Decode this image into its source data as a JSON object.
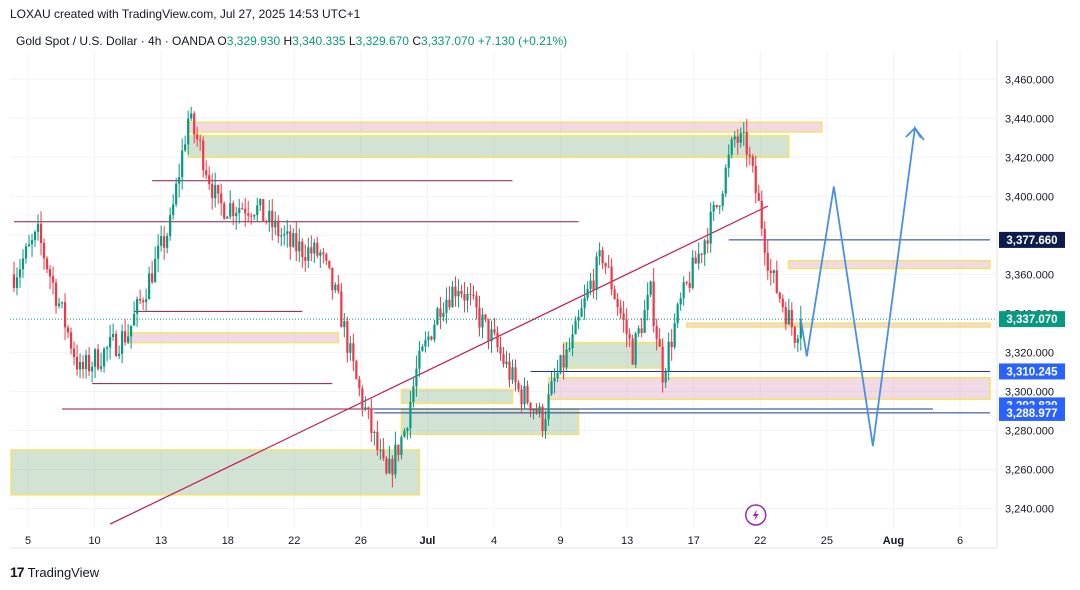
{
  "header": {
    "created_text": "LOXAU created with TradingView.com, Jul 27, 2025 14:53 UTC+1"
  },
  "legend": {
    "symbol": "Gold Spot / U.S. Dollar · 4h · OANDA",
    "o_label": "O",
    "o_value": "3,329.930",
    "h_label": "H",
    "h_value": "3,340.335",
    "l_label": "L",
    "l_value": "3,329.670",
    "c_label": "C",
    "c_value": "3,337.070",
    "change": "+7.130 (+0.21%)"
  },
  "footer": {
    "brand": "TradingView",
    "logo": "tv-logo-icon"
  },
  "colors": {
    "up": "#089981",
    "down": "#f23645",
    "accent": "#2962ff",
    "navy": "#1e3a8a"
  },
  "chart_data": {
    "type": "candlestick",
    "timeframe": "4h",
    "ylim": [
      3230,
      3475
    ],
    "y_ticks": [
      3240,
      3260,
      3280,
      3300,
      3320,
      3340,
      3360,
      3380,
      3400,
      3420,
      3440,
      3460
    ],
    "y_tick_labels": [
      "3,240.000",
      "3,260.000",
      "3,280.000",
      "3,300.000",
      "3,320.000",
      "3,340.000",
      "3,360.000",
      "3,380.000",
      "3,400.000",
      "3,420.000",
      "3,440.000",
      "3,460.000"
    ],
    "x_tick_labels": [
      "5",
      "10",
      "13",
      "18",
      "22",
      "26",
      "Jul",
      "4",
      "9",
      "13",
      "17",
      "22",
      "25",
      "Aug",
      "6"
    ],
    "price_labels": [
      {
        "value": 3377.66,
        "label": "3,377.660",
        "style": "navy"
      },
      {
        "value": 3337.07,
        "label": "3,337.070",
        "style": "green"
      },
      {
        "value": 3310.245,
        "label": "3,310.245",
        "style": "blue"
      },
      {
        "value": 3292.839,
        "label": "3,292.839",
        "style": "blue"
      },
      {
        "value": 3288.977,
        "label": "3,288.977",
        "style": "blue"
      }
    ],
    "anchor_candles": [
      {
        "i": 0,
        "price": 3360
      },
      {
        "i": 8,
        "price": 3380
      },
      {
        "i": 18,
        "price": 3330
      },
      {
        "i": 22,
        "price": 3310
      },
      {
        "i": 38,
        "price": 3330
      },
      {
        "i": 52,
        "price": 3385
      },
      {
        "i": 58,
        "price": 3440
      },
      {
        "i": 62,
        "price": 3425
      },
      {
        "i": 68,
        "price": 3395
      },
      {
        "i": 80,
        "price": 3395
      },
      {
        "i": 92,
        "price": 3375
      },
      {
        "i": 102,
        "price": 3370
      },
      {
        "i": 108,
        "price": 3345
      },
      {
        "i": 114,
        "price": 3305
      },
      {
        "i": 124,
        "price": 3255
      },
      {
        "i": 130,
        "price": 3280
      },
      {
        "i": 134,
        "price": 3310
      },
      {
        "i": 142,
        "price": 3345
      },
      {
        "i": 148,
        "price": 3355
      },
      {
        "i": 152,
        "price": 3345
      },
      {
        "i": 160,
        "price": 3325
      },
      {
        "i": 168,
        "price": 3300
      },
      {
        "i": 172,
        "price": 3295
      },
      {
        "i": 176,
        "price": 3285
      },
      {
        "i": 180,
        "price": 3305
      },
      {
        "i": 186,
        "price": 3325
      },
      {
        "i": 192,
        "price": 3355
      },
      {
        "i": 196,
        "price": 3370
      },
      {
        "i": 200,
        "price": 3350
      },
      {
        "i": 206,
        "price": 3320
      },
      {
        "i": 212,
        "price": 3350
      },
      {
        "i": 216,
        "price": 3310
      },
      {
        "i": 222,
        "price": 3345
      },
      {
        "i": 228,
        "price": 3370
      },
      {
        "i": 234,
        "price": 3395
      },
      {
        "i": 240,
        "price": 3430
      },
      {
        "i": 244,
        "price": 3425
      },
      {
        "i": 248,
        "price": 3395
      },
      {
        "i": 252,
        "price": 3360
      },
      {
        "i": 256,
        "price": 3345
      },
      {
        "i": 260,
        "price": 3330
      },
      {
        "i": 262,
        "price": 3337
      }
    ],
    "zones": [
      {
        "name": "zone-pink-top",
        "x1": 58,
        "x2": 269,
        "y1": 3433,
        "y2": 3438,
        "fill": "pink"
      },
      {
        "name": "zone-green-top",
        "x1": 58,
        "x2": 258,
        "y1": 3420,
        "y2": 3431,
        "fill": "green"
      },
      {
        "name": "zone-pink-right",
        "x1": 258,
        "x2": 325,
        "y1": 3363,
        "y2": 3367,
        "fill": "pink"
      },
      {
        "name": "zone-yellow-current",
        "x1": 224,
        "x2": 325,
        "y1": 3333,
        "y2": 3335,
        "fill": "pink"
      },
      {
        "name": "zone-green-mid",
        "x1": 183,
        "x2": 216,
        "y1": 3312,
        "y2": 3325,
        "fill": "green"
      },
      {
        "name": "zone-pink-support",
        "x1": 178,
        "x2": 325,
        "y1": 3296,
        "y2": 3307,
        "fill": "pink"
      },
      {
        "name": "zone-green-low",
        "x1": 129,
        "x2": 166,
        "y1": 3294,
        "y2": 3301,
        "fill": "green"
      },
      {
        "name": "zone-green-low2",
        "x1": 129,
        "x2": 188,
        "y1": 3278,
        "y2": 3291,
        "fill": "green"
      },
      {
        "name": "zone-green-bottom",
        "x1": -1,
        "x2": 135,
        "y1": 3247,
        "y2": 3270,
        "fill": "green"
      },
      {
        "name": "zone-pink-left",
        "x1": 38,
        "x2": 108,
        "y1": 3325,
        "y2": 3330,
        "fill": "pink"
      }
    ],
    "projection": [
      [
        262,
        3337
      ],
      [
        264,
        3318
      ],
      [
        273,
        3405
      ],
      [
        286,
        3272
      ],
      [
        300,
        3435
      ],
      [
        302,
        3430
      ]
    ]
  }
}
